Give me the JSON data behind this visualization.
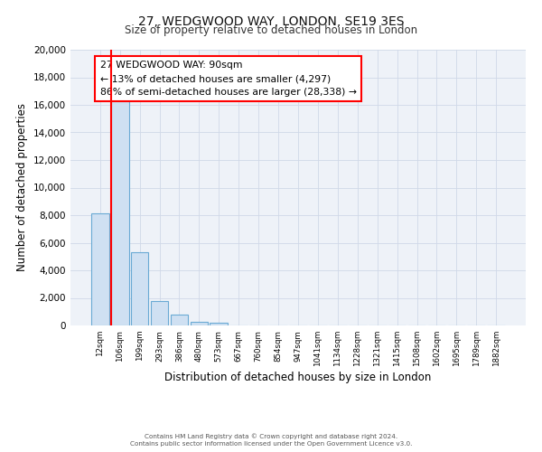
{
  "title": "27, WEDGWOOD WAY, LONDON, SE19 3ES",
  "subtitle": "Size of property relative to detached houses in London",
  "xlabel": "Distribution of detached houses by size in London",
  "ylabel": "Number of detached properties",
  "bar_labels": [
    "12sqm",
    "106sqm",
    "199sqm",
    "293sqm",
    "386sqm",
    "480sqm",
    "573sqm",
    "667sqm",
    "760sqm",
    "854sqm",
    "947sqm",
    "1041sqm",
    "1134sqm",
    "1228sqm",
    "1321sqm",
    "1415sqm",
    "1508sqm",
    "1602sqm",
    "1695sqm",
    "1789sqm",
    "1882sqm"
  ],
  "bar_values": [
    8100,
    16500,
    5300,
    1750,
    780,
    270,
    200,
    0,
    0,
    0,
    0,
    0,
    0,
    0,
    0,
    0,
    0,
    0,
    0,
    0,
    0
  ],
  "bar_color": "#cfe0f2",
  "bar_edge_color": "#6aaad4",
  "grid_color": "#d0d8e8",
  "annotation_box_text": "27 WEDGWOOD WAY: 90sqm\n← 13% of detached houses are smaller (4,297)\n86% of semi-detached houses are larger (28,338) →",
  "ylim": [
    0,
    20000
  ],
  "yticks": [
    0,
    2000,
    4000,
    6000,
    8000,
    10000,
    12000,
    14000,
    16000,
    18000,
    20000
  ],
  "footer_line1": "Contains HM Land Registry data © Crown copyright and database right 2024.",
  "footer_line2": "Contains public sector information licensed under the Open Government Licence v3.0.",
  "bg_color": "#ffffff",
  "plot_bg_color": "#eef2f8"
}
